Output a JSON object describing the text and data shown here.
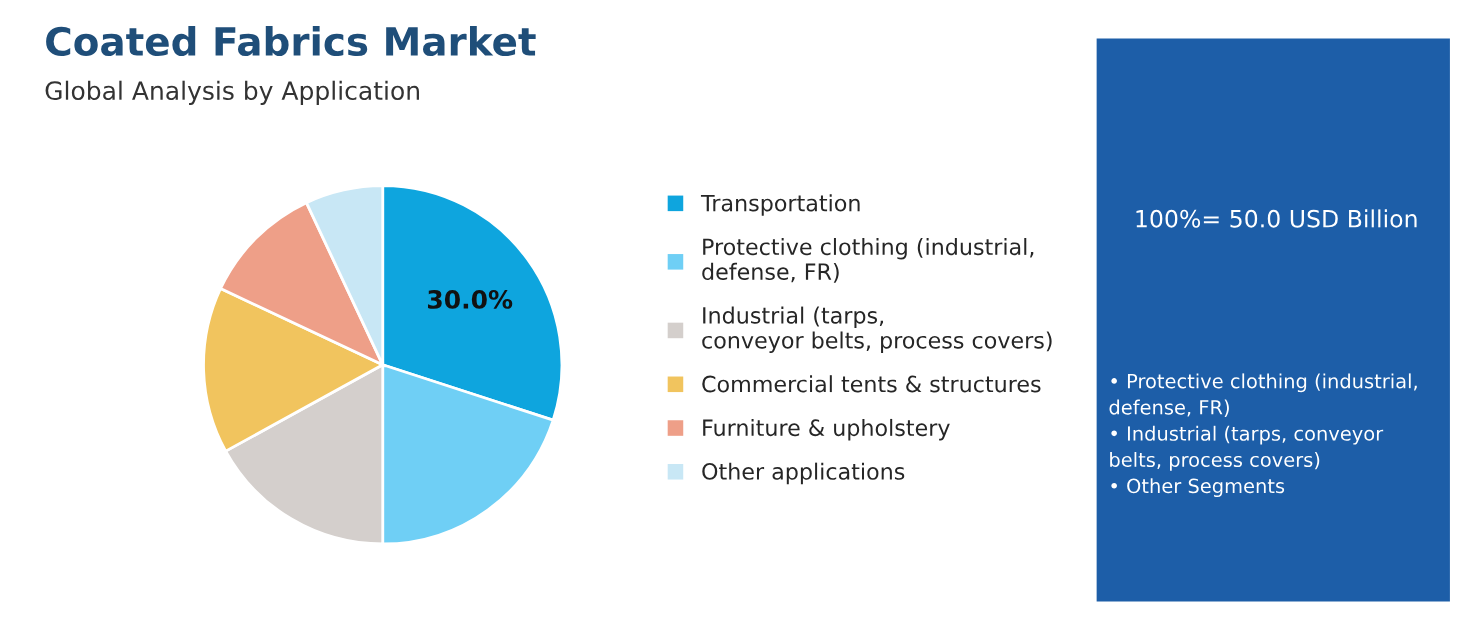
{
  "chart_data": {
    "type": "pie",
    "title": "Coated Fabrics Market",
    "subtitle": "Global Analysis by Application",
    "categories": [
      "Transportation",
      "Protective clothing (industrial, defense, FR)",
      "Industrial (tarps, conveyor belts, process covers)",
      "Commercial tents & structures",
      "Furniture & upholstery",
      "Other applications"
    ],
    "values": [
      30,
      20,
      17,
      15,
      11,
      7
    ],
    "colors": [
      "#0ea5de",
      "#6fcff5",
      "#d4cfcc",
      "#f1c45e",
      "#ee9f88",
      "#c8e7f5"
    ],
    "value_labels": [
      "30.0%",
      null,
      null,
      null,
      null,
      null
    ],
    "legend": "right",
    "annotations": [
      "100%= 50.0 USD Billion",
      "• Protective clothing (industrial,\ndefense, FR)\n• Industrial (tarps, conveyor\nbelts, process covers)\n• Other Segments"
    ]
  }
}
